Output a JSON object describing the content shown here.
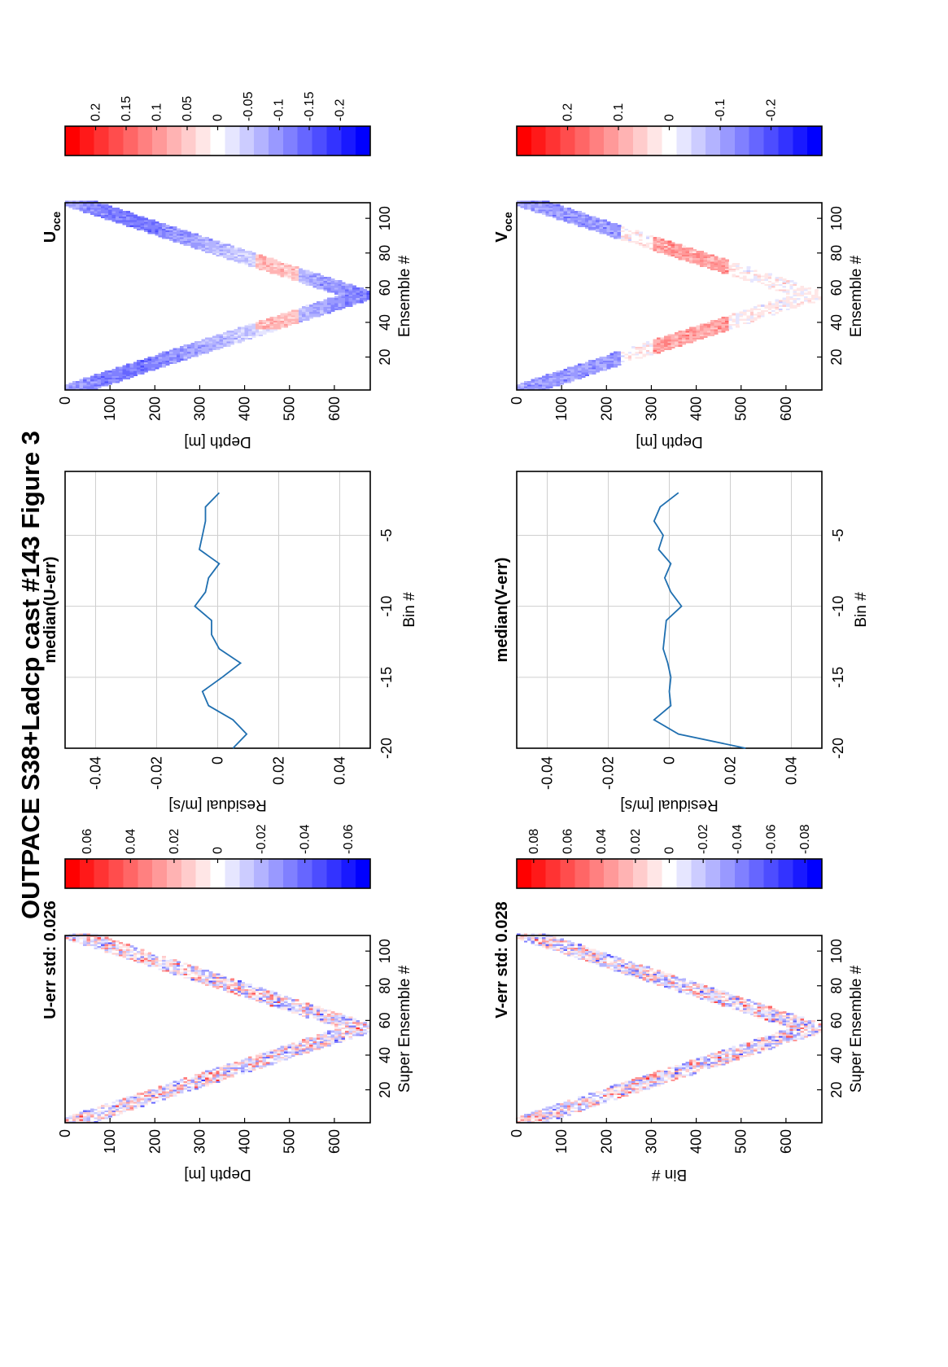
{
  "figure": {
    "title": "OUTPACE S38+Ladcp cast #143  Figure 3",
    "orientation": "rotated 90 degrees counter-clockwise"
  },
  "colormap": {
    "positive": "#ff0000",
    "zero": "#ffffff",
    "negative": "#0000ff",
    "levels": 21
  },
  "chart_data": [
    {
      "id": "u_err",
      "type": "heatmap",
      "title": "U-err std: 0.026",
      "xlabel": "Super Ensemble #",
      "ylabel": "Depth [m]",
      "xlim": [
        1,
        109
      ],
      "xticks": [
        "20",
        "40",
        "60",
        "80",
        "100"
      ],
      "ylim": [
        0,
        680
      ],
      "yticks": [
        "0",
        "100",
        "200",
        "300",
        "400",
        "500",
        "600"
      ],
      "cast": {
        "start_depth": 20,
        "max_depth": 660,
        "turn_ensemble": 55,
        "band_width": 90
      },
      "colorbar": {
        "range": [
          -0.07,
          0.07
        ],
        "ticks": [
          "0.06",
          "0.04",
          "0.02",
          "0",
          "-0.02",
          "-0.04",
          "-0.06"
        ]
      },
      "pattern": "fine-scale noise"
    },
    {
      "id": "u_resid",
      "type": "line",
      "title": "median(U-err)",
      "xlabel": "Residual [m/s]",
      "ylabel": "Bin #",
      "xlim": [
        -0.05,
        0.05
      ],
      "xticks": [
        "-0.04",
        "-0.02",
        "0",
        "0.02",
        "0.04"
      ],
      "ylim": [
        -20,
        -0.5
      ],
      "yticks": [
        "-5",
        "-10",
        "-15",
        "-20"
      ],
      "grid": true,
      "bins": [
        -2,
        -3,
        -4,
        -5,
        -6,
        -7,
        -8,
        -9,
        -10,
        -11,
        -12,
        -13,
        -14,
        -15,
        -16,
        -17,
        -18,
        -19,
        -20
      ],
      "values": [
        0.0005,
        -0.004,
        -0.004,
        -0.005,
        -0.006,
        0.0005,
        -0.003,
        -0.004,
        -0.0075,
        -0.002,
        -0.002,
        0.0005,
        0.0075,
        0.0015,
        -0.005,
        -0.003,
        0.005,
        0.0095,
        0.005
      ]
    },
    {
      "id": "u_oce",
      "type": "heatmap",
      "title": "U",
      "title_subscript": "oce",
      "xlabel": "Ensemble #",
      "ylabel": "Depth [m]",
      "xlim": [
        1,
        109
      ],
      "xticks": [
        "20",
        "40",
        "60",
        "80",
        "100"
      ],
      "ylim": [
        0,
        680
      ],
      "yticks": [
        "0",
        "100",
        "200",
        "300",
        "400",
        "500",
        "600"
      ],
      "cast": {
        "start_depth": 20,
        "max_depth": 660,
        "turn_ensemble": 55,
        "band_width": 90
      },
      "colorbar": {
        "range": [
          -0.25,
          0.25
        ],
        "ticks": [
          "0.2",
          "0.15",
          "0.1",
          "0.05",
          "0",
          "-0.05",
          "-0.1",
          "-0.15",
          "-0.2"
        ]
      },
      "pattern": "mostly negative (blue) velocities with weak red patches near 450-500 m"
    },
    {
      "id": "v_err",
      "type": "heatmap",
      "title": "V-err std: 0.028",
      "xlabel": "Super Ensemble #",
      "ylabel": "Bin #",
      "xlim": [
        1,
        109
      ],
      "xticks": [
        "20",
        "40",
        "60",
        "80",
        "100"
      ],
      "ylim": [
        0,
        680
      ],
      "yticks": [
        "0",
        "100",
        "200",
        "300",
        "400",
        "500",
        "600"
      ],
      "cast": {
        "start_depth": 20,
        "max_depth": 660,
        "turn_ensemble": 55,
        "band_width": 90
      },
      "colorbar": {
        "range": [
          -0.09,
          0.09
        ],
        "ticks": [
          "0.08",
          "0.06",
          "0.04",
          "0.02",
          "0",
          "-0.02",
          "-0.04",
          "-0.06",
          "-0.08"
        ]
      },
      "pattern": "fine-scale noise"
    },
    {
      "id": "v_resid",
      "type": "line",
      "title": "median(V-err)",
      "xlabel": "Residual [m/s]",
      "ylabel": "Bin #",
      "xlim": [
        -0.05,
        0.05
      ],
      "xticks": [
        "-0.04",
        "-0.02",
        "0",
        "0.02",
        "0.04"
      ],
      "ylim": [
        -20,
        -0.5
      ],
      "yticks": [
        "-5",
        "-10",
        "-15",
        "-20"
      ],
      "grid": true,
      "bins": [
        -2,
        -3,
        -4,
        -5,
        -6,
        -7,
        -8,
        -9,
        -10,
        -11,
        -12,
        -13,
        -14,
        -15,
        -16,
        -17,
        -18,
        -19,
        -20
      ],
      "values": [
        0.003,
        -0.003,
        -0.005,
        -0.002,
        -0.0035,
        0.0005,
        -0.0015,
        0.0005,
        0.004,
        -0.001,
        -0.0015,
        -0.002,
        -0.0005,
        0.0005,
        0.0,
        0.0005,
        -0.005,
        0.003,
        0.025
      ]
    },
    {
      "id": "v_oce",
      "type": "heatmap",
      "title": "V",
      "title_subscript": "oce",
      "xlabel": "Ensemble #",
      "ylabel": "Depth [m]",
      "xlim": [
        1,
        109
      ],
      "xticks": [
        "20",
        "40",
        "60",
        "80",
        "100"
      ],
      "ylim": [
        0,
        680
      ],
      "yticks": [
        "0",
        "100",
        "200",
        "300",
        "400",
        "500",
        "600"
      ],
      "cast": {
        "start_depth": 20,
        "max_depth": 660,
        "turn_ensemble": 55,
        "band_width": 90
      },
      "colorbar": {
        "range": [
          -0.3,
          0.3
        ],
        "ticks": [
          "0.2",
          "0.1",
          "0",
          "-0.1",
          "-0.2"
        ]
      },
      "pattern": "blue near surface (100-200 m), red band near 300-450 m"
    }
  ]
}
